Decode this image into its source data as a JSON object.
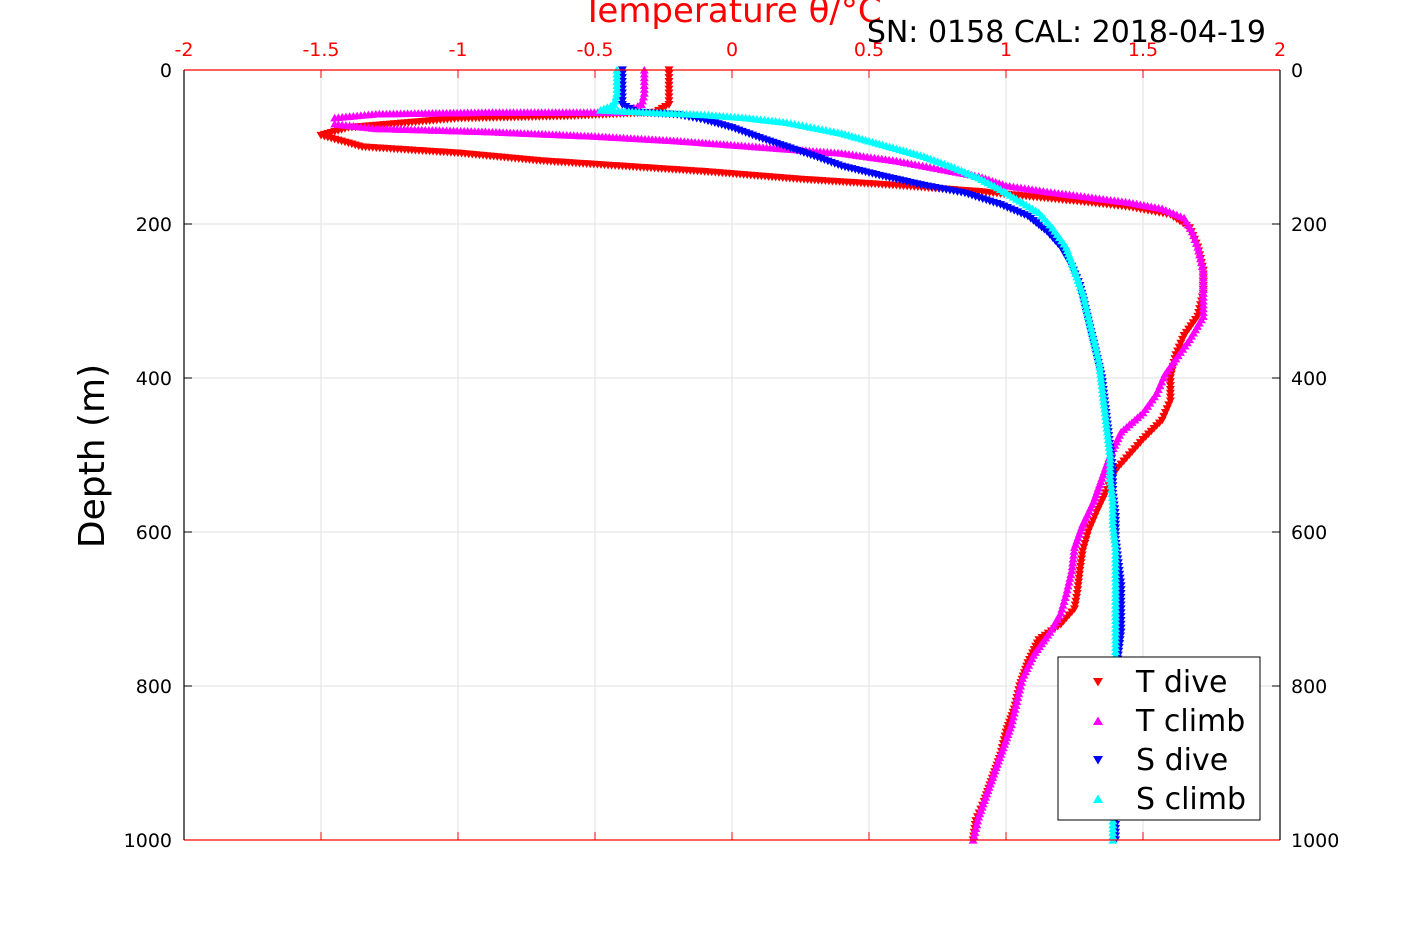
{
  "chart_data": {
    "type": "scatter",
    "title": "SN: 0158  CAL: 2018-04-19",
    "xlabel": "Temperature θ/°C",
    "ylabel": "Depth (m)",
    "xlim": [
      -2,
      2
    ],
    "ylim": [
      0,
      1000
    ],
    "y_reversed": true,
    "x_axis_position": "top",
    "mirrored_y_axis": "right",
    "grid": true,
    "legend_position": "bottom-right",
    "x_ticks": [
      "-2",
      "-1.5",
      "-1",
      "-0.5",
      "0",
      "0.5",
      "1",
      "1.5",
      "2"
    ],
    "y_ticks": [
      "0",
      "200",
      "400",
      "600",
      "800",
      "1000"
    ],
    "x_color": "#ff0000",
    "series": [
      {
        "name": "T dive",
        "marker": "triangle-down",
        "color": "#ff0000",
        "points": [
          [
            -0.23,
            0
          ],
          [
            -0.23,
            15
          ],
          [
            -0.23,
            30
          ],
          [
            -0.23,
            45
          ],
          [
            -0.28,
            55
          ],
          [
            -0.6,
            60
          ],
          [
            -1.0,
            63
          ],
          [
            -1.4,
            75
          ],
          [
            -1.5,
            85
          ],
          [
            -1.35,
            100
          ],
          [
            -1.0,
            108
          ],
          [
            -0.7,
            118
          ],
          [
            -0.4,
            125
          ],
          [
            -0.1,
            132
          ],
          [
            0.25,
            142
          ],
          [
            0.6,
            150
          ],
          [
            0.9,
            158
          ],
          [
            1.1,
            165
          ],
          [
            1.3,
            172
          ],
          [
            1.45,
            178
          ],
          [
            1.6,
            188
          ],
          [
            1.67,
            205
          ],
          [
            1.7,
            230
          ],
          [
            1.72,
            260
          ],
          [
            1.72,
            290
          ],
          [
            1.7,
            320
          ],
          [
            1.65,
            345
          ],
          [
            1.62,
            370
          ],
          [
            1.6,
            400
          ],
          [
            1.6,
            430
          ],
          [
            1.57,
            455
          ],
          [
            1.5,
            480
          ],
          [
            1.45,
            500
          ],
          [
            1.4,
            520
          ],
          [
            1.37,
            545
          ],
          [
            1.33,
            575
          ],
          [
            1.3,
            600
          ],
          [
            1.28,
            625
          ],
          [
            1.27,
            650
          ],
          [
            1.26,
            680
          ],
          [
            1.25,
            700
          ],
          [
            1.2,
            720
          ],
          [
            1.12,
            740
          ],
          [
            1.08,
            770
          ],
          [
            1.05,
            800
          ],
          [
            1.03,
            830
          ],
          [
            1.0,
            860
          ],
          [
            0.98,
            890
          ],
          [
            0.95,
            920
          ],
          [
            0.92,
            950
          ],
          [
            0.89,
            975
          ],
          [
            0.88,
            1000
          ]
        ]
      },
      {
        "name": "T climb",
        "marker": "triangle-up",
        "color": "#ff00ff",
        "points": [
          [
            -0.32,
            0
          ],
          [
            -0.32,
            15
          ],
          [
            -0.32,
            30
          ],
          [
            -0.33,
            45
          ],
          [
            -0.4,
            55
          ],
          [
            -0.9,
            55
          ],
          [
            -1.3,
            57
          ],
          [
            -1.45,
            62
          ],
          [
            -1.45,
            70
          ],
          [
            -1.3,
            76
          ],
          [
            -0.9,
            80
          ],
          [
            -0.5,
            86
          ],
          [
            -0.2,
            92
          ],
          [
            0.1,
            100
          ],
          [
            0.4,
            108
          ],
          [
            0.6,
            118
          ],
          [
            0.75,
            128
          ],
          [
            0.9,
            138
          ],
          [
            1.0,
            150
          ],
          [
            1.15,
            158
          ],
          [
            1.3,
            165
          ],
          [
            1.45,
            172
          ],
          [
            1.57,
            180
          ],
          [
            1.65,
            192
          ],
          [
            1.68,
            210
          ],
          [
            1.7,
            230
          ],
          [
            1.72,
            260
          ],
          [
            1.72,
            290
          ],
          [
            1.72,
            320
          ],
          [
            1.67,
            350
          ],
          [
            1.62,
            375
          ],
          [
            1.58,
            395
          ],
          [
            1.55,
            420
          ],
          [
            1.5,
            445
          ],
          [
            1.42,
            470
          ],
          [
            1.38,
            500
          ],
          [
            1.35,
            530
          ],
          [
            1.32,
            560
          ],
          [
            1.28,
            590
          ],
          [
            1.25,
            620
          ],
          [
            1.24,
            650
          ],
          [
            1.22,
            680
          ],
          [
            1.2,
            705
          ],
          [
            1.16,
            730
          ],
          [
            1.1,
            760
          ],
          [
            1.06,
            790
          ],
          [
            1.04,
            820
          ],
          [
            1.02,
            850
          ],
          [
            0.99,
            880
          ],
          [
            0.96,
            910
          ],
          [
            0.93,
            940
          ],
          [
            0.9,
            970
          ],
          [
            0.88,
            1000
          ]
        ]
      },
      {
        "name": "S dive",
        "marker": "triangle-down",
        "color": "#0000ff",
        "points": [
          [
            -0.4,
            0
          ],
          [
            -0.4,
            15
          ],
          [
            -0.4,
            30
          ],
          [
            -0.4,
            45
          ],
          [
            -0.35,
            55
          ],
          [
            -0.2,
            58
          ],
          [
            -0.1,
            65
          ],
          [
            0.0,
            75
          ],
          [
            0.1,
            88
          ],
          [
            0.2,
            100
          ],
          [
            0.3,
            112
          ],
          [
            0.4,
            125
          ],
          [
            0.55,
            138
          ],
          [
            0.7,
            150
          ],
          [
            0.85,
            160
          ],
          [
            0.98,
            175
          ],
          [
            1.08,
            190
          ],
          [
            1.15,
            210
          ],
          [
            1.2,
            230
          ],
          [
            1.24,
            255
          ],
          [
            1.27,
            280
          ],
          [
            1.29,
            310
          ],
          [
            1.31,
            340
          ],
          [
            1.33,
            370
          ],
          [
            1.35,
            400
          ],
          [
            1.36,
            430
          ],
          [
            1.37,
            460
          ],
          [
            1.38,
            490
          ],
          [
            1.39,
            520
          ],
          [
            1.39,
            550
          ],
          [
            1.4,
            580
          ],
          [
            1.4,
            610
          ],
          [
            1.41,
            640
          ],
          [
            1.42,
            670
          ],
          [
            1.42,
            700
          ],
          [
            1.42,
            730
          ],
          [
            1.41,
            760
          ],
          [
            1.4,
            790
          ],
          [
            1.4,
            820
          ],
          [
            1.4,
            850
          ],
          [
            1.4,
            880
          ],
          [
            1.4,
            910
          ],
          [
            1.4,
            940
          ],
          [
            1.4,
            970
          ],
          [
            1.4,
            1000
          ]
        ]
      },
      {
        "name": "S climb",
        "marker": "triangle-up",
        "color": "#00ffff",
        "points": [
          [
            -0.42,
            0
          ],
          [
            -0.42,
            15
          ],
          [
            -0.42,
            30
          ],
          [
            -0.43,
            45
          ],
          [
            -0.48,
            52
          ],
          [
            -0.3,
            55
          ],
          [
            -0.1,
            58
          ],
          [
            0.05,
            62
          ],
          [
            0.2,
            68
          ],
          [
            0.3,
            75
          ],
          [
            0.4,
            82
          ],
          [
            0.5,
            92
          ],
          [
            0.6,
            102
          ],
          [
            0.7,
            112
          ],
          [
            0.8,
            125
          ],
          [
            0.9,
            140
          ],
          [
            0.98,
            155
          ],
          [
            1.05,
            170
          ],
          [
            1.12,
            185
          ],
          [
            1.17,
            205
          ],
          [
            1.22,
            230
          ],
          [
            1.25,
            260
          ],
          [
            1.28,
            290
          ],
          [
            1.3,
            320
          ],
          [
            1.32,
            350
          ],
          [
            1.34,
            380
          ],
          [
            1.35,
            410
          ],
          [
            1.36,
            440
          ],
          [
            1.37,
            470
          ],
          [
            1.38,
            500
          ],
          [
            1.38,
            530
          ],
          [
            1.39,
            560
          ],
          [
            1.39,
            590
          ],
          [
            1.4,
            620
          ],
          [
            1.4,
            650
          ],
          [
            1.4,
            680
          ],
          [
            1.4,
            710
          ],
          [
            1.4,
            740
          ],
          [
            1.4,
            770
          ],
          [
            1.4,
            800
          ],
          [
            1.4,
            830
          ],
          [
            1.4,
            860
          ],
          [
            1.4,
            890
          ],
          [
            1.39,
            920
          ],
          [
            1.39,
            950
          ],
          [
            1.39,
            980
          ],
          [
            1.39,
            1000
          ]
        ]
      }
    ]
  }
}
